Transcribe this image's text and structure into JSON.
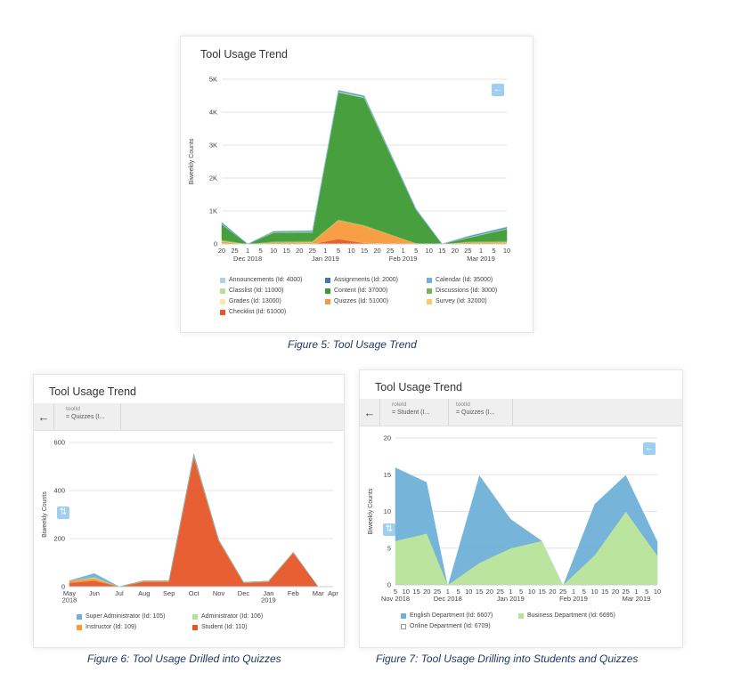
{
  "figures": [
    {
      "title": "Tool Usage Trend",
      "caption": "Figure 5: Tool Usage Trend"
    },
    {
      "title": "Tool Usage Trend",
      "caption": "Figure 6: Tool Usage Drilled into Quizzes",
      "filters": [
        {
          "key": "toolId",
          "value": "= Quizzes (I..."
        }
      ]
    },
    {
      "title": "Tool Usage Trend",
      "caption": "Figure 7: Tool Usage Drilling into Students and Quizzes",
      "filters": [
        {
          "key": "roleId",
          "value": "= Student (I..."
        },
        {
          "key": "toolId",
          "value": "= Quizzes (I..."
        }
      ]
    }
  ],
  "icons": {
    "back": "arrow-left-icon",
    "sort": "sort-icon",
    "collapse": "arrow-left-icon"
  },
  "chart_data": [
    {
      "type": "area",
      "stacked": true,
      "ylabel": "Biweekly Counts",
      "ylim": [
        0,
        5000
      ],
      "yticks": [
        0,
        1000,
        2000,
        3000,
        4000,
        5000
      ],
      "ytick_labels": [
        "0",
        "1K",
        "2K",
        "3K",
        "4K",
        "5K"
      ],
      "x_ticks": [
        "20",
        "25",
        "1",
        "5",
        "10",
        "15",
        "20",
        "25",
        "1",
        "5",
        "10",
        "15",
        "20",
        "25",
        "1",
        "5",
        "10",
        "15",
        "20",
        "25",
        "1",
        "5",
        "10"
      ],
      "x_month_labels": [
        {
          "text": "Dec 2018",
          "at": 2
        },
        {
          "text": "Jan 2019",
          "at": 8
        },
        {
          "text": "Feb 2019",
          "at": 14
        },
        {
          "text": "Mar 2019",
          "at": 20
        }
      ],
      "x_points": [
        0,
        2,
        4,
        7,
        9,
        11,
        15,
        17,
        19,
        22
      ],
      "series": [
        {
          "name": "Checklist (Id: 61000)",
          "color": "#e8572a",
          "values": [
            0,
            0,
            0,
            0,
            150,
            30,
            0,
            0,
            0,
            0
          ]
        },
        {
          "name": "Survey (Id: 32000)",
          "color": "#fbc865",
          "values": [
            30,
            0,
            10,
            10,
            10,
            10,
            0,
            0,
            10,
            20
          ]
        },
        {
          "name": "Quizzes (Id: 51000)",
          "color": "#f89a3c",
          "values": [
            40,
            0,
            30,
            40,
            550,
            500,
            20,
            0,
            30,
            30
          ]
        },
        {
          "name": "Grades (Id: 13000)",
          "color": "#fbe8a6",
          "values": [
            20,
            0,
            10,
            10,
            10,
            10,
            0,
            0,
            10,
            10
          ]
        },
        {
          "name": "Discussions (Id: 3000)",
          "color": "#7cb24f",
          "values": [
            50,
            0,
            40,
            40,
            30,
            30,
            10,
            0,
            30,
            40
          ]
        },
        {
          "name": "Content (Id: 37000)",
          "color": "#3e9a33",
          "values": [
            450,
            0,
            250,
            250,
            3850,
            3850,
            1000,
            0,
            100,
            350
          ]
        },
        {
          "name": "Classlist (Id: 11000)",
          "color": "#b8e09a",
          "values": [
            20,
            0,
            20,
            20,
            30,
            30,
            10,
            0,
            20,
            20
          ]
        },
        {
          "name": "Calendar (Id: 35000)",
          "color": "#6fb0d9",
          "values": [
            20,
            0,
            15,
            15,
            20,
            20,
            10,
            0,
            15,
            20
          ]
        },
        {
          "name": "Assignments (Id: 2000)",
          "color": "#3b78b5",
          "values": [
            20,
            0,
            10,
            15,
            15,
            15,
            10,
            0,
            15,
            20
          ]
        },
        {
          "name": "Announcements (Id: 4000)",
          "color": "#a8d3f0",
          "values": [
            10,
            0,
            5,
            5,
            5,
            5,
            5,
            0,
            5,
            5
          ]
        }
      ],
      "legend_order": [
        "Announcements (Id: 4000)",
        "Assignments (Id: 2000)",
        "Calendar (Id: 35000)",
        "Classlist (Id: 11000)",
        "Content (Id: 37000)",
        "Discussions (Id: 3000)",
        "Grades (Id: 13000)",
        "Quizzes (Id: 51000)",
        "Survey (Id: 32000)",
        "Checklist (Id: 61000)"
      ],
      "legend_position": "bottom"
    },
    {
      "type": "area",
      "stacked": true,
      "ylabel": "Biweekly Counts",
      "ylim": [
        0,
        600
      ],
      "yticks": [
        0,
        200,
        400,
        600
      ],
      "ytick_labels": [
        "0",
        "200",
        "400",
        "600"
      ],
      "x_ticks": [
        "May\n2018",
        "Jun",
        "Jul",
        "Aug",
        "Sep",
        "Oct",
        "Nov",
        "Dec",
        "Jan\n2019",
        "Feb",
        "Mar",
        "Apr"
      ],
      "x_points": [
        5.8,
        6.3,
        6.8,
        7.3,
        7.8,
        8.3,
        8.8,
        9.3,
        9.8,
        10.3,
        10.8,
        11.1
      ],
      "series": [
        {
          "name": "Student (Id: 110)",
          "color": "#e8572a",
          "values": [
            15,
            25,
            0,
            20,
            20,
            540,
            190,
            15,
            20,
            140,
            0,
            0
          ]
        },
        {
          "name": "Instructor (Id: 109)",
          "color": "#f89a3c",
          "values": [
            10,
            10,
            0,
            5,
            5,
            5,
            5,
            3,
            3,
            3,
            0,
            0
          ]
        },
        {
          "name": "Administrator (Id: 106)",
          "color": "#b8e09a",
          "values": [
            0,
            5,
            0,
            0,
            0,
            3,
            0,
            0,
            0,
            0,
            0,
            0
          ]
        },
        {
          "name": "Super Administrator (Id: 105)",
          "color": "#6fb0d9",
          "values": [
            0,
            15,
            0,
            0,
            0,
            5,
            0,
            0,
            0,
            0,
            0,
            0
          ]
        }
      ],
      "legend_order": [
        "Super Administrator (Id: 105)",
        "Administrator (Id: 106)",
        "Instructor (Id: 109)",
        "Student (Id: 110)"
      ],
      "legend_position": "bottom"
    },
    {
      "type": "area",
      "stacked": true,
      "ylabel": "Biweekly Counts",
      "ylim": [
        0,
        20
      ],
      "yticks": [
        0,
        5,
        10,
        15,
        20
      ],
      "ytick_labels": [
        "0",
        "5",
        "10",
        "15",
        "20"
      ],
      "x_ticks": [
        "5",
        "10",
        "15",
        "20",
        "25",
        "1",
        "5",
        "10",
        "15",
        "20",
        "25",
        "1",
        "5",
        "10",
        "15",
        "20",
        "25",
        "1",
        "5",
        "10",
        "15",
        "20",
        "25",
        "1",
        "5",
        "10"
      ],
      "x_month_labels": [
        {
          "text": "Nov 2018",
          "at": 0
        },
        {
          "text": "Dec 2018",
          "at": 5
        },
        {
          "text": "Jan 2019",
          "at": 11
        },
        {
          "text": "Feb 2019",
          "at": 17
        },
        {
          "text": "Mar 2019",
          "at": 23
        }
      ],
      "x_points": [
        0,
        3,
        5,
        8,
        11,
        14,
        16,
        19,
        22,
        25
      ],
      "series": [
        {
          "name": "Business Department (Id: 6695)",
          "color": "#b8e49a",
          "values": [
            6,
            7,
            0,
            3,
            5,
            6,
            0,
            4,
            10,
            4
          ]
        },
        {
          "name": "English Department (Id: 6607)",
          "color": "#6fb0d9",
          "values": [
            10,
            7,
            0,
            12,
            4,
            0,
            0,
            7,
            5,
            2
          ]
        },
        {
          "name": "Online Department (Id: 6709)",
          "color": "#ffffff",
          "values": [
            0,
            0,
            0,
            0,
            0,
            0,
            0,
            0,
            0,
            0
          ]
        }
      ],
      "legend_order": [
        "English Department (Id: 6607)",
        "Business Department (Id: 6695)",
        "Online Department (Id: 6709)"
      ],
      "legend_position": "bottom"
    }
  ]
}
